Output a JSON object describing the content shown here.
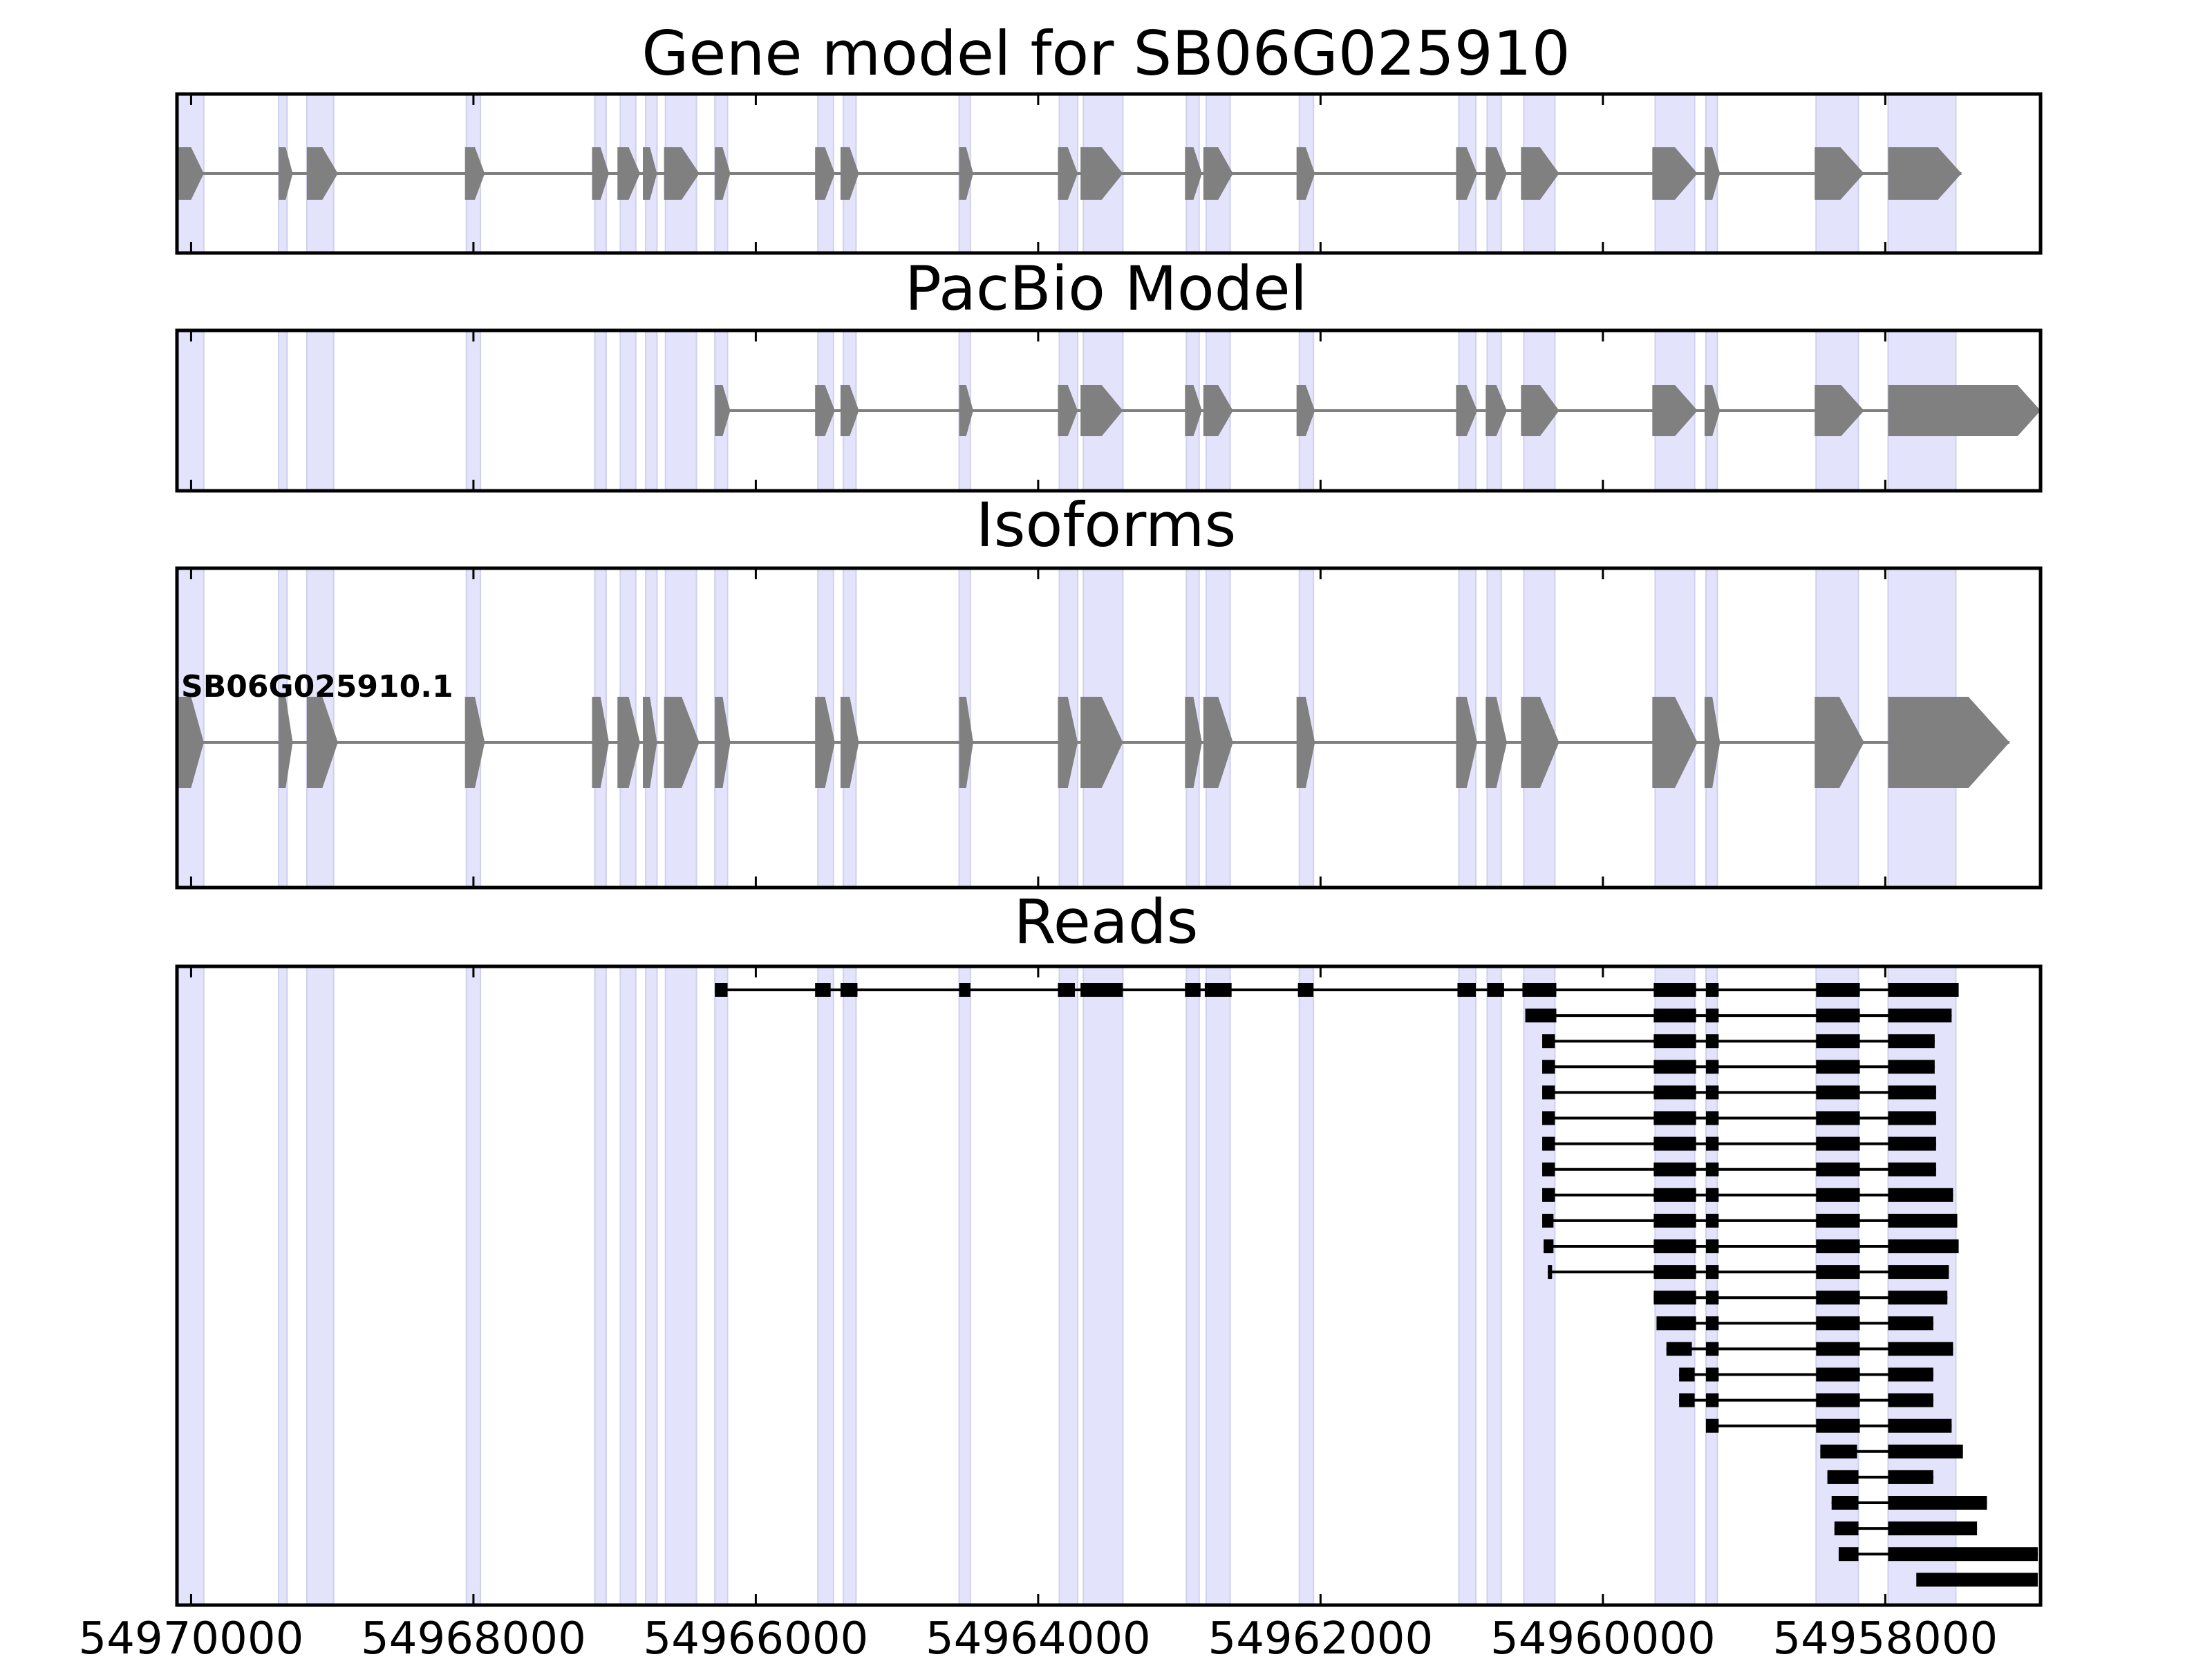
{
  "panels": [
    {
      "key": "gene",
      "title": "Gene model for SB06G025910"
    },
    {
      "key": "pacbio",
      "title": "PacBio Model"
    },
    {
      "key": "isoforms",
      "title": "Isoforms"
    },
    {
      "key": "reads",
      "title": "Reads"
    }
  ],
  "isoform_label": "SB06G025910.1",
  "colors": {
    "exon": "#808080",
    "intron": "#808080",
    "highlight": "#e3e3fb",
    "highlight_edge": "#d0d0f0",
    "read": "#000000",
    "frame": "#000000"
  },
  "chart_data": {
    "type": "gene-structure",
    "strand": "-",
    "xlim": [
      54970100,
      54956900
    ],
    "x_ticks": [
      {
        "value": 54970000,
        "label": "54970000"
      },
      {
        "value": 54968000,
        "label": "54968000"
      },
      {
        "value": 54966000,
        "label": "54966000"
      },
      {
        "value": 54964000,
        "label": "54964000"
      },
      {
        "value": 54962000,
        "label": "54962000"
      },
      {
        "value": 54960000,
        "label": "54960000"
      },
      {
        "value": 54958000,
        "label": "54958000"
      }
    ],
    "exon_highlights": [
      [
        54970090,
        54969910
      ],
      [
        54969380,
        54969320
      ],
      [
        54969180,
        54968990
      ],
      [
        54968050,
        54967950
      ],
      [
        54967140,
        54967060
      ],
      [
        54966960,
        54966850
      ],
      [
        54966780,
        54966700
      ],
      [
        54966640,
        54966420
      ],
      [
        54966290,
        54966200
      ],
      [
        54965560,
        54965450
      ],
      [
        54965380,
        54965290
      ],
      [
        54964560,
        54964480
      ],
      [
        54963850,
        54963720
      ],
      [
        54963680,
        54963400
      ],
      [
        54962950,
        54962860
      ],
      [
        54962810,
        54962640
      ],
      [
        54962150,
        54962050
      ],
      [
        54961020,
        54960900
      ],
      [
        54960820,
        54960720
      ],
      [
        54960560,
        54960340
      ],
      [
        54959630,
        54959350
      ],
      [
        54959270,
        54959190
      ],
      [
        54958490,
        54958190
      ],
      [
        54957980,
        54957500
      ]
    ],
    "gene_model": [
      [
        54970090,
        54969910
      ],
      [
        54969380,
        54969280
      ],
      [
        54969180,
        54968960
      ],
      [
        54968060,
        54967920
      ],
      [
        54967160,
        54967040
      ],
      [
        54966980,
        54966820
      ],
      [
        54966800,
        54966700
      ],
      [
        54966650,
        54966400
      ],
      [
        54966290,
        54966180
      ],
      [
        54965580,
        54965440
      ],
      [
        54965400,
        54965270
      ],
      [
        54964560,
        54964460
      ],
      [
        54963860,
        54963720
      ],
      [
        54963700,
        54963400
      ],
      [
        54962960,
        54962840
      ],
      [
        54962830,
        54962620
      ],
      [
        54962170,
        54962040
      ],
      [
        54961040,
        54960890
      ],
      [
        54960830,
        54960680
      ],
      [
        54960580,
        54960310
      ],
      [
        54959650,
        54959330
      ],
      [
        54959280,
        54959170
      ],
      [
        54958500,
        54958150
      ],
      [
        54957980,
        54957460
      ]
    ],
    "pacbio_model": [
      [
        54966290,
        54966180
      ],
      [
        54965580,
        54965440
      ],
      [
        54965400,
        54965270
      ],
      [
        54964560,
        54964460
      ],
      [
        54963860,
        54963720
      ],
      [
        54963700,
        54963400
      ],
      [
        54962960,
        54962840
      ],
      [
        54962830,
        54962620
      ],
      [
        54962170,
        54962040
      ],
      [
        54961040,
        54960890
      ],
      [
        54960830,
        54960680
      ],
      [
        54960580,
        54960310
      ],
      [
        54959650,
        54959330
      ],
      [
        54959280,
        54959170
      ],
      [
        54958500,
        54958150
      ],
      [
        54957980,
        54956900
      ]
    ],
    "isoforms": [
      {
        "name": "SB06G025910.1",
        "exons": [
          [
            54970090,
            54969910
          ],
          [
            54969380,
            54969280
          ],
          [
            54969180,
            54968960
          ],
          [
            54968060,
            54967920
          ],
          [
            54967160,
            54967040
          ],
          [
            54966980,
            54966820
          ],
          [
            54966800,
            54966700
          ],
          [
            54966650,
            54966400
          ],
          [
            54966290,
            54966180
          ],
          [
            54965580,
            54965440
          ],
          [
            54965400,
            54965270
          ],
          [
            54964560,
            54964460
          ],
          [
            54963860,
            54963720
          ],
          [
            54963700,
            54963400
          ],
          [
            54962960,
            54962840
          ],
          [
            54962830,
            54962620
          ],
          [
            54962170,
            54962040
          ],
          [
            54961040,
            54960890
          ],
          [
            54960830,
            54960680
          ],
          [
            54960580,
            54960310
          ],
          [
            54959650,
            54959330
          ],
          [
            54959280,
            54959170
          ],
          [
            54958500,
            54958150
          ],
          [
            54957980,
            54957120
          ]
        ]
      }
    ],
    "reads": [
      [
        [
          54966290,
          54966200
        ],
        [
          54965580,
          54965470
        ],
        [
          54965400,
          54965280
        ],
        [
          54964560,
          54964480
        ],
        [
          54963860,
          54963740
        ],
        [
          54963700,
          54963400
        ],
        [
          54962960,
          54962850
        ],
        [
          54962820,
          54962630
        ],
        [
          54962160,
          54962050
        ],
        [
          54961030,
          54960900
        ],
        [
          54960820,
          54960700
        ],
        [
          54960570,
          54960330
        ],
        [
          54959640,
          54959340
        ],
        [
          54959270,
          54959180
        ],
        [
          54958490,
          54958180
        ],
        [
          54957980,
          54957480
        ]
      ],
      [
        [
          54960550,
          54960330
        ],
        [
          54959640,
          54959340
        ],
        [
          54959270,
          54959180
        ],
        [
          54958490,
          54958180
        ],
        [
          54957980,
          54957530
        ]
      ],
      [
        [
          54960430,
          54960340
        ],
        [
          54959640,
          54959340
        ],
        [
          54959270,
          54959180
        ],
        [
          54958490,
          54958180
        ],
        [
          54957980,
          54957650
        ]
      ],
      [
        [
          54960430,
          54960340
        ],
        [
          54959640,
          54959340
        ],
        [
          54959270,
          54959180
        ],
        [
          54958490,
          54958180
        ],
        [
          54957980,
          54957650
        ]
      ],
      [
        [
          54960430,
          54960340
        ],
        [
          54959640,
          54959340
        ],
        [
          54959270,
          54959180
        ],
        [
          54958490,
          54958180
        ],
        [
          54957980,
          54957640
        ]
      ],
      [
        [
          54960430,
          54960340
        ],
        [
          54959640,
          54959340
        ],
        [
          54959270,
          54959180
        ],
        [
          54958490,
          54958180
        ],
        [
          54957980,
          54957640
        ]
      ],
      [
        [
          54960430,
          54960340
        ],
        [
          54959640,
          54959340
        ],
        [
          54959270,
          54959180
        ],
        [
          54958490,
          54958180
        ],
        [
          54957980,
          54957640
        ]
      ],
      [
        [
          54960430,
          54960340
        ],
        [
          54959640,
          54959340
        ],
        [
          54959270,
          54959180
        ],
        [
          54958490,
          54958180
        ],
        [
          54957980,
          54957640
        ]
      ],
      [
        [
          54960430,
          54960340
        ],
        [
          54959640,
          54959340
        ],
        [
          54959270,
          54959180
        ],
        [
          54958490,
          54958180
        ],
        [
          54957980,
          54957520
        ]
      ],
      [
        [
          54960430,
          54960350
        ],
        [
          54959640,
          54959340
        ],
        [
          54959270,
          54959180
        ],
        [
          54958490,
          54958180
        ],
        [
          54957980,
          54957490
        ]
      ],
      [
        [
          54960420,
          54960350
        ],
        [
          54959640,
          54959340
        ],
        [
          54959270,
          54959180
        ],
        [
          54958490,
          54958180
        ],
        [
          54957980,
          54957480
        ]
      ],
      [
        [
          54960390,
          54960360
        ],
        [
          54959640,
          54959340
        ],
        [
          54959270,
          54959180
        ],
        [
          54958490,
          54958180
        ],
        [
          54957980,
          54957550
        ]
      ],
      [
        [
          54959640,
          54959340
        ],
        [
          54959270,
          54959180
        ],
        [
          54958490,
          54958180
        ],
        [
          54957980,
          54957560
        ]
      ],
      [
        [
          54959620,
          54959340
        ],
        [
          54959270,
          54959180
        ],
        [
          54958490,
          54958180
        ],
        [
          54957980,
          54957660
        ]
      ],
      [
        [
          54959550,
          54959370
        ],
        [
          54959270,
          54959180
        ],
        [
          54958490,
          54958180
        ],
        [
          54957980,
          54957520
        ]
      ],
      [
        [
          54959460,
          54959350
        ],
        [
          54959270,
          54959180
        ],
        [
          54958490,
          54958180
        ],
        [
          54957980,
          54957660
        ]
      ],
      [
        [
          54959460,
          54959350
        ],
        [
          54959270,
          54959180
        ],
        [
          54958490,
          54958180
        ],
        [
          54957980,
          54957660
        ]
      ],
      [
        [
          54959270,
          54959180
        ],
        [
          54958490,
          54958180
        ],
        [
          54957980,
          54957530
        ]
      ],
      [
        [
          54958460,
          54958200
        ],
        [
          54957980,
          54957450
        ]
      ],
      [
        [
          54958410,
          54958190
        ],
        [
          54957980,
          54957660
        ]
      ],
      [
        [
          54958380,
          54958190
        ],
        [
          54957980,
          54957280
        ]
      ],
      [
        [
          54958360,
          54958190
        ],
        [
          54957980,
          54957350
        ]
      ],
      [
        [
          54958330,
          54958190
        ],
        [
          54957980,
          54956920
        ]
      ],
      [
        [
          54957780,
          54956920
        ]
      ]
    ]
  }
}
